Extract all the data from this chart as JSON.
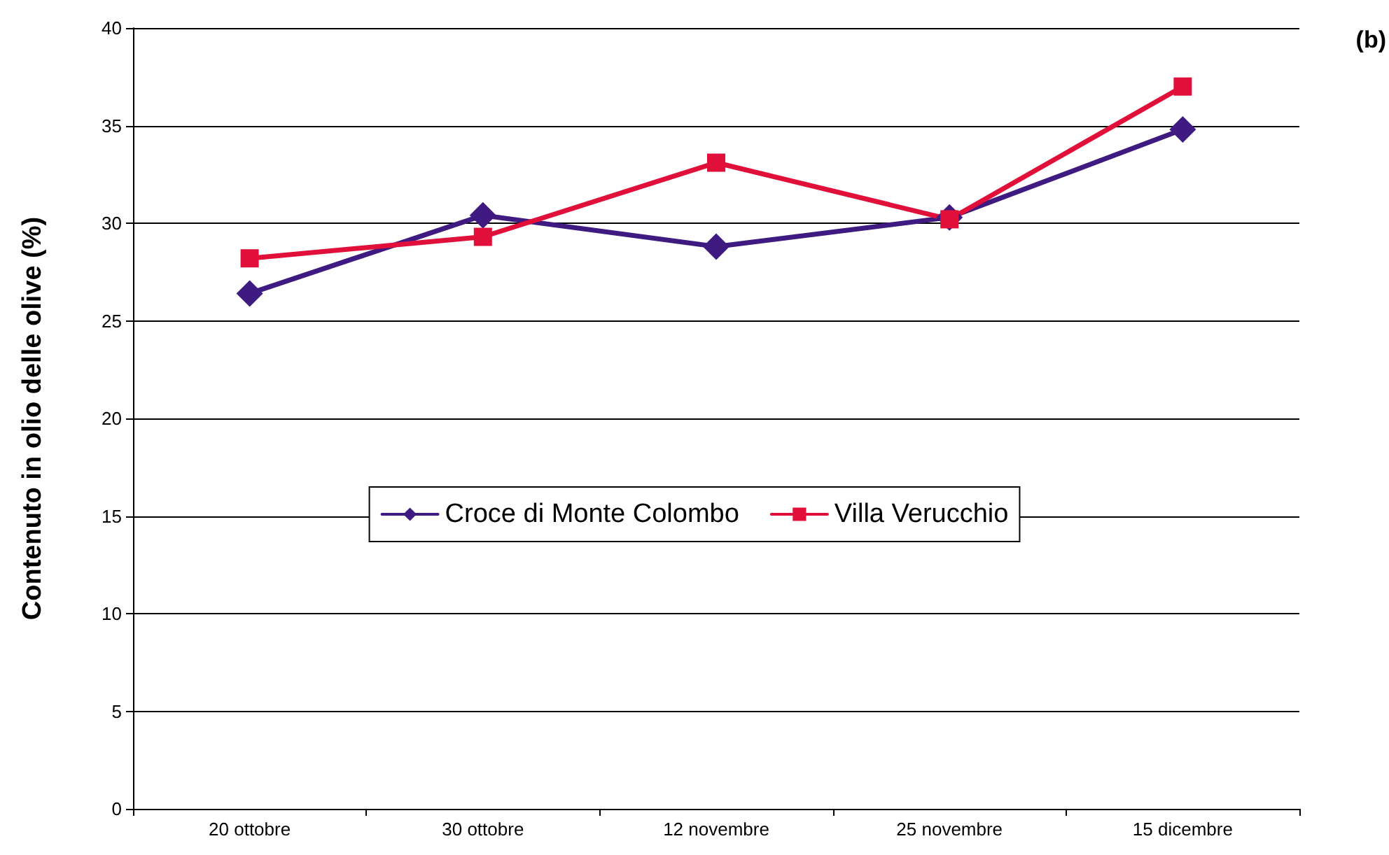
{
  "chart_data": {
    "type": "line",
    "ylabel": "Contenuto in olio delle olive (%)",
    "annotations": [
      "(b)"
    ],
    "categories": [
      "20 ottobre",
      "30 ottobre",
      "12 novembre",
      "25 novembre",
      "15 dicembre"
    ],
    "series": [
      {
        "name": "Croce di Monte Colombo",
        "color": "#3f1a80",
        "marker": "diamond",
        "values": [
          26.4,
          30.4,
          28.8,
          30.3,
          34.8
        ]
      },
      {
        "name": "Villa Verucchio",
        "color": "#e0103a",
        "marker": "square",
        "values": [
          28.2,
          29.3,
          33.1,
          30.2,
          37.0
        ]
      }
    ],
    "ylim": [
      0,
      40
    ],
    "yticks": [
      0,
      5,
      10,
      15,
      20,
      25,
      30,
      35,
      40
    ],
    "grid": "y",
    "legend": "center",
    "line_style": "solid"
  }
}
